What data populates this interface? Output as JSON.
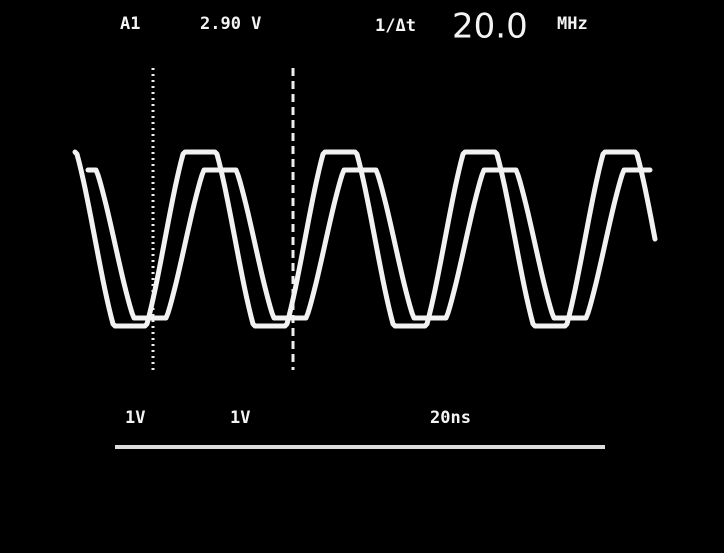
{
  "readout": {
    "channel": "A1",
    "voltage": "2.90 V",
    "cursor_mode": "1/Δt",
    "frequency": "20.0",
    "frequency_unit": "MHz"
  },
  "scale": {
    "ch1": "1V",
    "ch2": "1V",
    "timebase": "20ns"
  }
}
